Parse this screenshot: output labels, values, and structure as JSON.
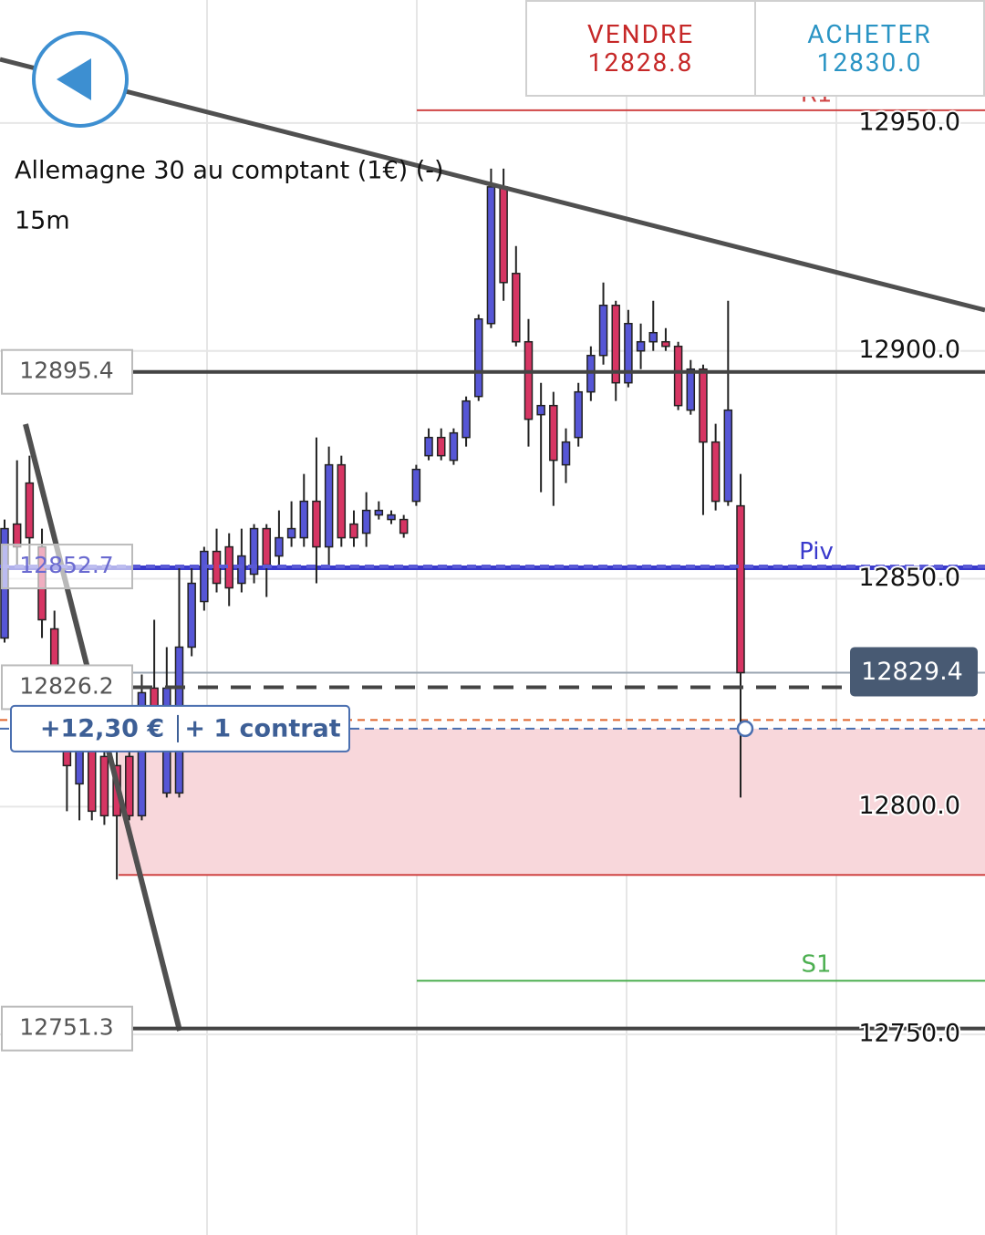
{
  "header": {
    "sell": {
      "label": "VENDRE",
      "price": "12828.8"
    },
    "buy": {
      "label": "ACHETER",
      "price": "12830.0"
    }
  },
  "chart_data": {
    "type": "candlestick",
    "title": "Allemagne 30 au comptant (1€) (-)",
    "timeframe": "15m",
    "open": [
      12837,
      12862,
      12871,
      12857,
      12839,
      12825,
      12805,
      12819,
      12811,
      12809,
      12811,
      12798,
      12826,
      12803,
      12803,
      12835,
      12845,
      12856,
      12857,
      12849,
      12851,
      12861,
      12855,
      12859,
      12859,
      12867,
      12857,
      12875,
      12862,
      12860,
      12864,
      12863,
      12863,
      12867,
      12877,
      12881,
      12876,
      12881,
      12890,
      12906,
      12936,
      12917,
      12902,
      12886,
      12888,
      12875,
      12881,
      12891,
      12899,
      12910,
      12893,
      12900,
      12902,
      12902,
      12901,
      12887,
      12896,
      12880,
      12867,
      12866
    ],
    "high": [
      12863,
      12876,
      12877,
      12861,
      12843,
      12829,
      12821,
      12823,
      12821,
      12823,
      12817,
      12829,
      12841,
      12835,
      12853,
      12853,
      12857,
      12861,
      12860,
      12861,
      12862,
      12862,
      12865,
      12867,
      12873,
      12881,
      12879,
      12877,
      12865,
      12869,
      12867,
      12865,
      12864,
      12875,
      12883,
      12883,
      12883,
      12890,
      12908,
      12940,
      12940,
      12923,
      12907,
      12893,
      12891,
      12883,
      12893,
      12901,
      12915,
      12911,
      12909,
      12906,
      12911,
      12905,
      12902,
      12898,
      12897,
      12884,
      12911,
      12873
    ],
    "low": [
      12836,
      12853,
      12853,
      12837,
      12817,
      12799,
      12797,
      12797,
      12796,
      12784,
      12797,
      12797,
      12819,
      12802,
      12802,
      12833,
      12843,
      12847,
      12844,
      12847,
      12849,
      12846,
      12853,
      12857,
      12857,
      12849,
      12853,
      12857,
      12857,
      12857,
      12863,
      12862,
      12859,
      12866,
      12876,
      12876,
      12875,
      12879,
      12889,
      12905,
      12911,
      12901,
      12879,
      12869,
      12866,
      12871,
      12879,
      12889,
      12897,
      12889,
      12892,
      12896,
      12900,
      12900,
      12887,
      12886,
      12864,
      12865,
      12866,
      12802
    ],
    "close": [
      12861,
      12857,
      12859,
      12841,
      12825,
      12809,
      12813,
      12799,
      12798,
      12798,
      12798,
      12825,
      12822,
      12826,
      12835,
      12849,
      12856,
      12849,
      12848,
      12855,
      12861,
      12853,
      12859,
      12861,
      12867,
      12857,
      12875,
      12859,
      12859,
      12865,
      12865,
      12864,
      12860,
      12874,
      12881,
      12877,
      12882,
      12889,
      12907,
      12936,
      12915,
      12902,
      12885,
      12888,
      12876,
      12880,
      12891,
      12899,
      12910,
      12893,
      12906,
      12902,
      12904,
      12901,
      12888,
      12896,
      12880,
      12867,
      12887,
      12829.4
    ],
    "up_color": "#5656d6",
    "down_color": "#d63563",
    "ylim": [
      12706,
      12977
    ],
    "yticks": [
      {
        "value": 12950,
        "label": "12950.0"
      },
      {
        "value": 12900,
        "label": "12900.0"
      },
      {
        "value": 12850,
        "label": "12850.0"
      },
      {
        "value": 12800,
        "label": "12800.0"
      },
      {
        "value": 12750,
        "label": "12750.0"
      }
    ],
    "grid": true,
    "price_lines": [
      {
        "value": 12895.4,
        "dash": false
      },
      {
        "value": 12852.7,
        "dash": true
      },
      {
        "value": 12826.2,
        "dash": true
      },
      {
        "value": 12751.3,
        "dash": false
      }
    ],
    "levels": [
      {
        "name": "R1",
        "value": 12952.8,
        "color": "#d04545"
      },
      {
        "name": "Piv",
        "value": 12852.4,
        "color": "#3a3acc"
      },
      {
        "name": "S1",
        "value": 12761.8,
        "color": "#4caf50"
      }
    ],
    "position": {
      "entry": 12817.1,
      "stop": 12785,
      "alert": 12819,
      "pnl": "+12,30 €",
      "size": "+ 1 contrat"
    }
  }
}
